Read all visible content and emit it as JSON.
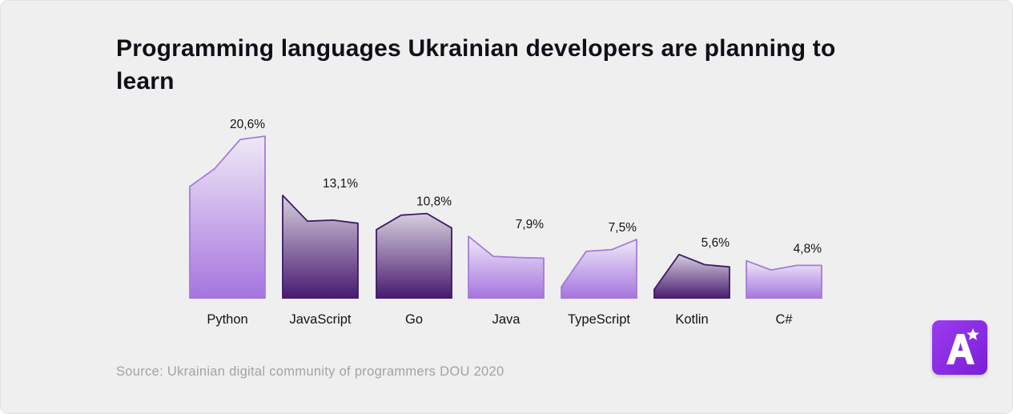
{
  "title": "Programming languages Ukrainian developers are planning to learn",
  "source": "Source: Ukrainian digital community of programmers DOU 2020",
  "logo": {
    "letter": "A",
    "star": "★",
    "color": "#8a2be2"
  },
  "colors": {
    "light_series_top": "#ece6f4",
    "light_series_bottom": "#a577e0",
    "light_outline": "#a57bd9",
    "dark_series_top": "#d3cbdb",
    "dark_series_bottom": "#4a1e78",
    "dark_outline": "#3e1a66"
  },
  "chart_data": {
    "type": "bar",
    "title": "Programming languages Ukrainian developers are planning to learn",
    "unit": "%",
    "categories": [
      "Python",
      "JavaScript",
      "Go",
      "Java",
      "TypeScript",
      "Kotlin",
      "C#"
    ],
    "values": [
      20.6,
      13.1,
      10.8,
      7.9,
      7.5,
      5.6,
      4.8
    ],
    "value_labels": [
      "20,6%",
      "13,1%",
      "10,8%",
      "7,9%",
      "7,5%",
      "5,6%",
      "4,8%"
    ],
    "styles": [
      "light",
      "dark",
      "dark",
      "light",
      "light",
      "dark",
      "light"
    ],
    "grid": false,
    "legend": "none"
  }
}
